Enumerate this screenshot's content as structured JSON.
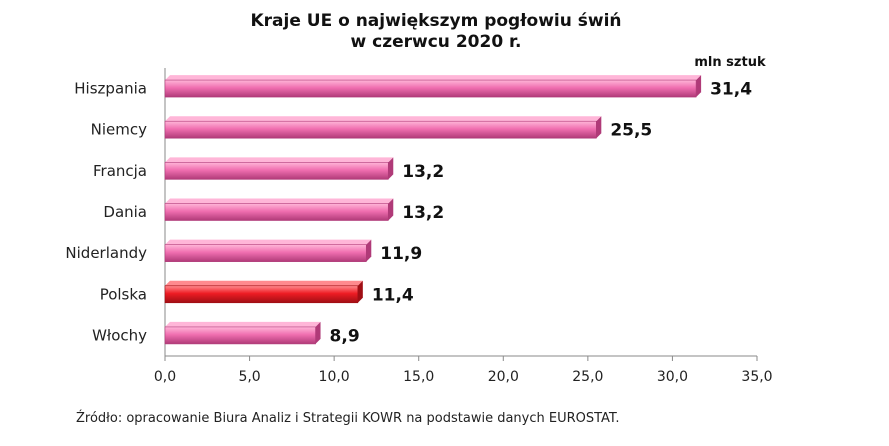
{
  "chart_data": {
    "type": "bar",
    "orientation": "horizontal",
    "title": [
      "Kraje UE o największym pogłowiu świń",
      "w czerwcu 2020 r."
    ],
    "unit_label": "mln sztuk",
    "categories": [
      "Hiszpania",
      "Niemcy",
      "Francja",
      "Dania",
      "Niderlandy",
      "Polska",
      "Włochy"
    ],
    "values": [
      31.4,
      25.5,
      13.2,
      13.2,
      11.9,
      11.4,
      8.9
    ],
    "value_labels": [
      "31,4",
      "25,5",
      "13,2",
      "13,2",
      "11,9",
      "11,4",
      "8,9"
    ],
    "highlight": "Polska",
    "xlim": [
      0,
      35
    ],
    "xticks": [
      "0,0",
      "5,0",
      "10,0",
      "15,0",
      "20,0",
      "25,0",
      "30,0",
      "35,0"
    ],
    "grid": false,
    "colors": {
      "bar": "#f06fb0",
      "bar_top": "#ffb6d8",
      "bar_side": "#b03a78",
      "highlight": "#ee1c24",
      "highlight_top": "#ff8a8e",
      "highlight_side": "#a00e14",
      "axis": "#8a8a8a"
    },
    "source": "Źródło: opracowanie Biura Analiz i Strategii KOWR na podstawie danych EUROSTAT."
  }
}
